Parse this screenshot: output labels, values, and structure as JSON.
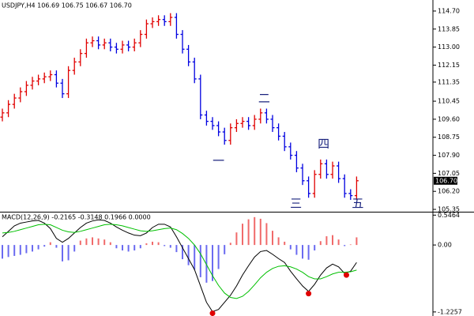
{
  "chart_data": [
    {
      "type": "ohlc",
      "title": "USDJPY,H4  106.69 106.75 106.67 106.70",
      "up_color": "#e00000",
      "down_color": "#0000e0",
      "open": [
        109.7,
        109.9,
        110.3,
        110.6,
        110.9,
        111.2,
        111.4,
        111.5,
        111.6,
        111.7,
        111.3,
        110.8,
        111.9,
        112.3,
        112.7,
        113.2,
        113.3,
        113.1,
        113.2,
        113.0,
        112.9,
        113.1,
        113.0,
        113.2,
        113.6,
        114.1,
        114.2,
        114.3,
        114.2,
        114.4,
        113.6,
        112.9,
        112.3,
        111.5,
        109.8,
        109.5,
        109.3,
        109.0,
        108.6,
        109.2,
        109.4,
        109.5,
        109.3,
        109.6,
        109.9,
        109.6,
        109.2,
        108.8,
        108.3,
        107.9,
        107.3,
        106.7,
        106.1,
        107.0,
        107.5,
        107.0,
        107.4,
        106.8,
        106.1,
        106.0
      ],
      "high": [
        110.1,
        110.5,
        110.8,
        111.1,
        111.4,
        111.6,
        111.7,
        111.8,
        111.9,
        111.9,
        111.5,
        112.1,
        112.5,
        112.9,
        113.4,
        113.5,
        113.5,
        113.4,
        113.4,
        113.2,
        113.3,
        113.3,
        113.4,
        113.8,
        114.3,
        114.4,
        114.5,
        114.5,
        114.6,
        114.6,
        113.8,
        113.1,
        112.5,
        111.7,
        110.0,
        109.7,
        109.5,
        109.2,
        109.4,
        109.6,
        109.7,
        109.7,
        109.8,
        110.1,
        110.1,
        109.8,
        109.4,
        109.0,
        108.5,
        108.1,
        107.5,
        106.9,
        107.2,
        107.7,
        107.7,
        107.6,
        107.6,
        107.0,
        106.3,
        106.9
      ],
      "low": [
        109.5,
        109.7,
        110.1,
        110.4,
        110.7,
        111.0,
        111.2,
        111.3,
        111.4,
        111.1,
        110.6,
        110.6,
        111.7,
        112.1,
        112.5,
        113.0,
        112.9,
        112.9,
        112.8,
        112.7,
        112.7,
        112.8,
        112.8,
        113.0,
        113.4,
        113.9,
        114.0,
        114.0,
        114.0,
        113.4,
        112.7,
        112.1,
        111.3,
        109.6,
        109.3,
        109.1,
        108.8,
        108.4,
        108.4,
        109.0,
        109.2,
        109.1,
        109.1,
        109.4,
        109.4,
        109.0,
        108.6,
        108.1,
        107.7,
        107.1,
        106.5,
        105.9,
        105.9,
        106.8,
        106.8,
        106.8,
        106.6,
        105.9,
        105.8,
        105.8
      ],
      "close": [
        109.9,
        110.3,
        110.6,
        110.9,
        111.2,
        111.4,
        111.5,
        111.6,
        111.7,
        111.3,
        110.8,
        111.9,
        112.3,
        112.7,
        113.2,
        113.3,
        113.1,
        113.2,
        113.0,
        112.9,
        113.1,
        113.0,
        113.2,
        113.6,
        114.1,
        114.2,
        114.3,
        114.2,
        114.4,
        113.6,
        112.9,
        112.3,
        111.5,
        109.8,
        109.5,
        109.3,
        109.0,
        108.6,
        109.2,
        109.4,
        109.5,
        109.3,
        109.6,
        109.9,
        109.6,
        109.2,
        108.8,
        108.3,
        107.9,
        107.3,
        106.7,
        106.1,
        107.0,
        107.5,
        107.0,
        107.4,
        106.8,
        106.1,
        106.0,
        106.7
      ],
      "ylim": [
        105.24,
        115.22
      ],
      "yticks": [
        {
          "value": 114.7,
          "label": "114.70"
        },
        {
          "value": 113.85,
          "label": "113.85"
        },
        {
          "value": 113.0,
          "label": "113.00"
        },
        {
          "value": 112.15,
          "label": "112.15"
        },
        {
          "value": 111.35,
          "label": "111.35"
        },
        {
          "value": 110.45,
          "label": "110.45"
        },
        {
          "value": 109.6,
          "label": "109.60"
        },
        {
          "value": 108.75,
          "label": "108.75"
        },
        {
          "value": 107.9,
          "label": "107.90"
        },
        {
          "value": 107.05,
          "label": "107.05"
        },
        {
          "value": 106.2,
          "label": "106.20"
        },
        {
          "value": 105.35,
          "label": "105.35"
        }
      ],
      "last_price": {
        "value": 106.7,
        "label": "106.70"
      },
      "annotations": [
        {
          "text": "一",
          "x": 36,
          "y": 107.6
        },
        {
          "text": "二",
          "x": 43.6,
          "y": 110.55
        },
        {
          "text": "三",
          "x": 48.9,
          "y": 105.6
        },
        {
          "text": "四",
          "x": 53.5,
          "y": 108.4
        },
        {
          "text": "五",
          "x": 59.2,
          "y": 105.6
        }
      ]
    },
    {
      "type": "macd",
      "title": "MACD(12,26,9) -0.2165 -0.3148 0.1966 0.0000",
      "series": [
        {
          "color": "#000000",
          "values": [
            0.15,
            0.25,
            0.35,
            0.4,
            0.42,
            0.44,
            0.45,
            0.4,
            0.3,
            0.12,
            0.05,
            0.12,
            0.22,
            0.32,
            0.4,
            0.44,
            0.46,
            0.45,
            0.4,
            0.33,
            0.27,
            0.22,
            0.18,
            0.17,
            0.22,
            0.32,
            0.38,
            0.38,
            0.33,
            0.15,
            -0.05,
            -0.25,
            -0.45,
            -0.75,
            -1.05,
            -1.22,
            -1.18,
            -1.05,
            -0.92,
            -0.75,
            -0.55,
            -0.38,
            -0.22,
            -0.12,
            -0.1,
            -0.17,
            -0.25,
            -0.32,
            -0.48,
            -0.62,
            -0.75,
            -0.85,
            -0.72,
            -0.55,
            -0.42,
            -0.35,
            -0.4,
            -0.52,
            -0.48,
            -0.32
          ]
        },
        {
          "color": "#00c000",
          "values": [
            0.22,
            0.23,
            0.25,
            0.28,
            0.31,
            0.34,
            0.37,
            0.38,
            0.37,
            0.32,
            0.27,
            0.24,
            0.23,
            0.25,
            0.28,
            0.31,
            0.34,
            0.37,
            0.38,
            0.37,
            0.35,
            0.32,
            0.29,
            0.26,
            0.25,
            0.26,
            0.28,
            0.3,
            0.31,
            0.28,
            0.21,
            0.12,
            0.0,
            -0.16,
            -0.36,
            -0.56,
            -0.74,
            -0.88,
            -0.96,
            -0.98,
            -0.94,
            -0.85,
            -0.73,
            -0.6,
            -0.5,
            -0.43,
            -0.39,
            -0.38,
            -0.4,
            -0.44,
            -0.5,
            -0.58,
            -0.62,
            -0.62,
            -0.58,
            -0.53,
            -0.5,
            -0.5,
            -0.49,
            -0.46
          ]
        }
      ],
      "histogram": [
        -0.25,
        -0.22,
        -0.2,
        -0.18,
        -0.15,
        -0.12,
        -0.08,
        -0.03,
        0.05,
        -0.05,
        -0.3,
        -0.28,
        -0.12,
        0.08,
        0.12,
        0.14,
        0.12,
        0.1,
        0.05,
        -0.06,
        -0.1,
        -0.12,
        -0.1,
        -0.06,
        0.03,
        0.06,
        0.05,
        -0.02,
        -0.05,
        -0.13,
        -0.26,
        -0.37,
        -0.45,
        -0.59,
        -0.69,
        -0.66,
        -0.44,
        -0.17,
        0.04,
        0.23,
        0.39,
        0.47,
        0.51,
        0.48,
        0.4,
        0.26,
        0.14,
        0.06,
        -0.08,
        -0.18,
        -0.25,
        -0.27,
        -0.1,
        0.07,
        0.16,
        0.18,
        0.1,
        -0.02,
        0.01,
        0.14
      ],
      "up_color": "#f06a6a",
      "down_color": "#6a6af0",
      "markers": {
        "color": "#e00000",
        "x": [
          35,
          51,
          57.3
        ],
        "y": [
          -1.25,
          -0.89,
          -0.55
        ]
      },
      "ylim": [
        -1.3,
        0.58
      ],
      "yticks": [
        0.5464,
        {
          "value": 0,
          "label": "0.00"
        },
        -1.2257
      ]
    }
  ]
}
